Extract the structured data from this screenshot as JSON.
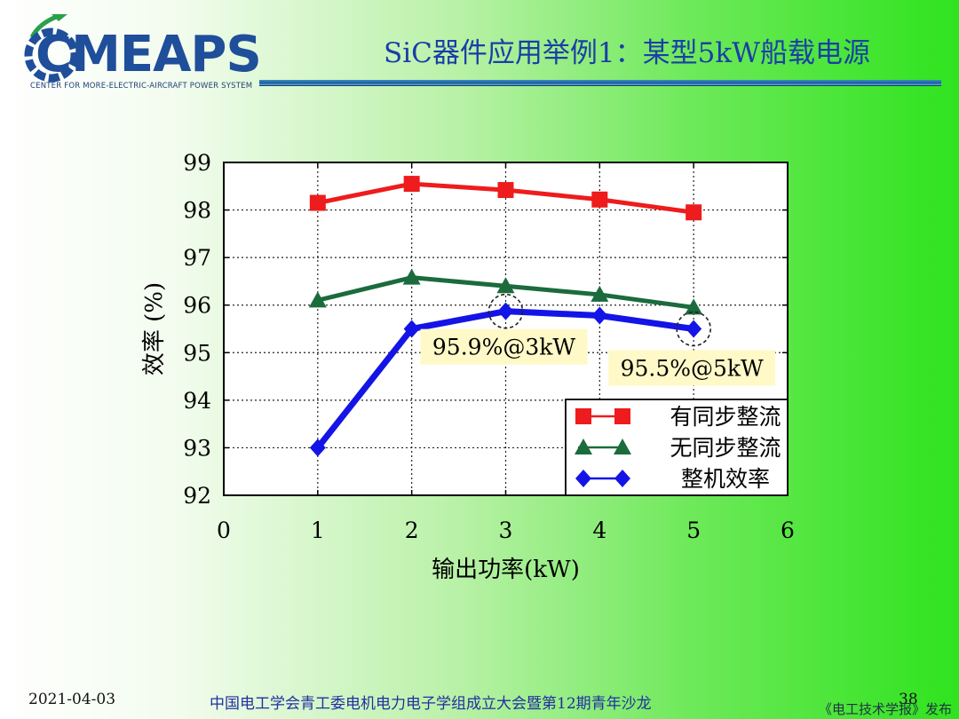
{
  "header": {
    "logo_text": "CMEAPS",
    "logo_subtitle": "CENTER FOR MORE-ELECTRIC-AIRCRAFT POWER SYSTEM",
    "title": "SiC器件应用举例1：某型5kW船载电源"
  },
  "footer": {
    "date": "2021-04-03",
    "event": "中国电工学会青工委电机电力电子学组成立大会暨第12期青年沙龙",
    "page": "38",
    "watermark": "《电工技术学报》发布"
  },
  "chart_data": {
    "type": "line",
    "xlabel": "输出功率(kW)",
    "ylabel": "效率 (%)",
    "xlim": [
      0,
      6
    ],
    "ylim": [
      92,
      99
    ],
    "xticks": [
      0,
      1,
      2,
      3,
      4,
      5,
      6
    ],
    "yticks": [
      92,
      93,
      94,
      95,
      96,
      97,
      98,
      99
    ],
    "grid": true,
    "legend_position": "bottom-right",
    "x": [
      1,
      2,
      3,
      4,
      5
    ],
    "series": [
      {
        "name": "有同步整流",
        "marker": "square",
        "color": "#ee1c1c",
        "values": [
          98.15,
          98.55,
          98.42,
          98.22,
          97.95
        ]
      },
      {
        "name": "无同步整流",
        "marker": "triangle",
        "color": "#1b6b3c",
        "values": [
          96.1,
          96.58,
          96.4,
          96.22,
          95.95
        ]
      },
      {
        "name": "整机效率",
        "marker": "diamond",
        "color": "#1414e6",
        "values": [
          93.0,
          95.5,
          95.87,
          95.78,
          95.5
        ]
      }
    ],
    "annotations": [
      {
        "text": "95.9%@3kW",
        "x": 3,
        "y": 95.87
      },
      {
        "text": "95.5%@5kW",
        "x": 5,
        "y": 95.5
      }
    ]
  }
}
